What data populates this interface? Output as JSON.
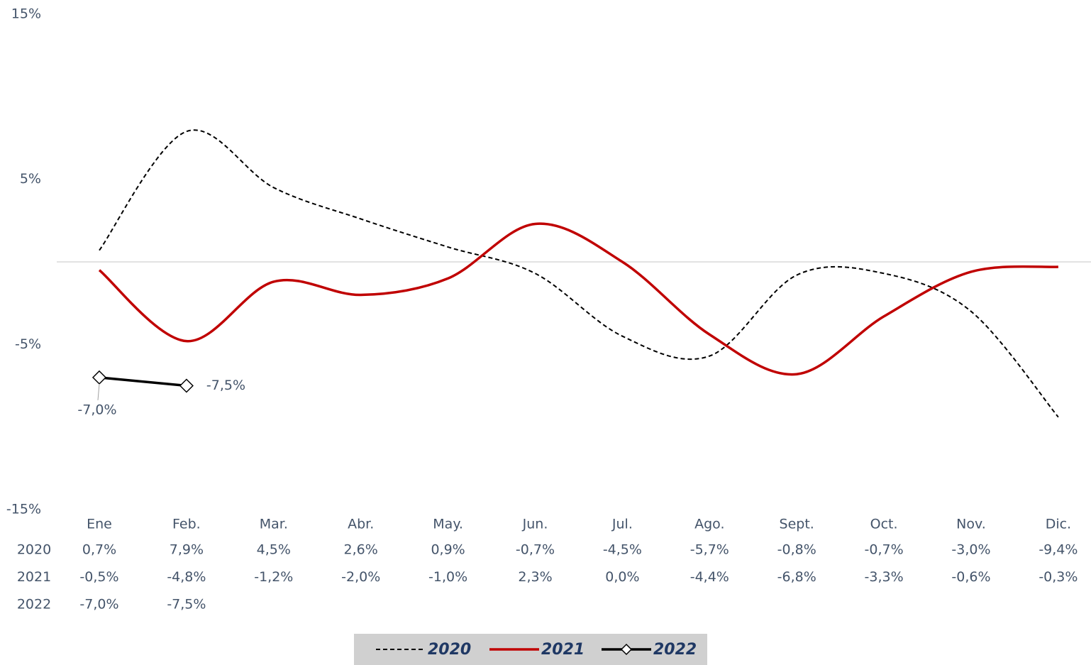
{
  "chart_data": {
    "type": "line",
    "categories": [
      "Ene",
      "Feb.",
      "Mar.",
      "Abr.",
      "May.",
      "Jun.",
      "Jul.",
      "Ago.",
      "Sept.",
      "Oct.",
      "Nov.",
      "Dic."
    ],
    "ylim": [
      -15,
      15
    ],
    "yticks": [
      {
        "value": 15,
        "label": "15%"
      },
      {
        "value": 5,
        "label": "5%"
      },
      {
        "value": -5,
        "label": "-5%"
      },
      {
        "value": -15,
        "label": "-15%"
      }
    ],
    "series": [
      {
        "name": "2020",
        "color": "#000000",
        "dash": true,
        "smooth": true,
        "markers": false,
        "values": [
          0.7,
          7.9,
          4.5,
          2.6,
          0.9,
          -0.7,
          -4.5,
          -5.7,
          -0.8,
          -0.7,
          -3.0,
          -9.4
        ],
        "value_labels": [
          "0,7%",
          "7,9%",
          "4,5%",
          "2,6%",
          "0,9%",
          "-0,7%",
          "-4,5%",
          "-5,7%",
          "-0,8%",
          "-0,7%",
          "-3,0%",
          "-9,4%"
        ]
      },
      {
        "name": "2021",
        "color": "#c00000",
        "dash": false,
        "smooth": true,
        "markers": false,
        "values": [
          -0.5,
          -4.8,
          -1.2,
          -2.0,
          -1.0,
          2.3,
          0.0,
          -4.4,
          -6.8,
          -3.3,
          -0.6,
          -0.3
        ],
        "value_labels": [
          "-0,5%",
          "-4,8%",
          "-1,2%",
          "-2,0%",
          "-1,0%",
          "2,3%",
          "0,0%",
          "-4,4%",
          "-6,8%",
          "-3,3%",
          "-0,6%",
          "-0,3%"
        ]
      },
      {
        "name": "2022",
        "color": "#000000",
        "dash": false,
        "smooth": false,
        "markers": true,
        "values": [
          -7.0,
          -7.5,
          null,
          null,
          null,
          null,
          null,
          null,
          null,
          null,
          null,
          null
        ],
        "value_labels": [
          "-7,0%",
          "-7,5%",
          null,
          null,
          null,
          null,
          null,
          null,
          null,
          null,
          null,
          null
        ]
      }
    ],
    "legend": "bottom",
    "data_table": true
  }
}
